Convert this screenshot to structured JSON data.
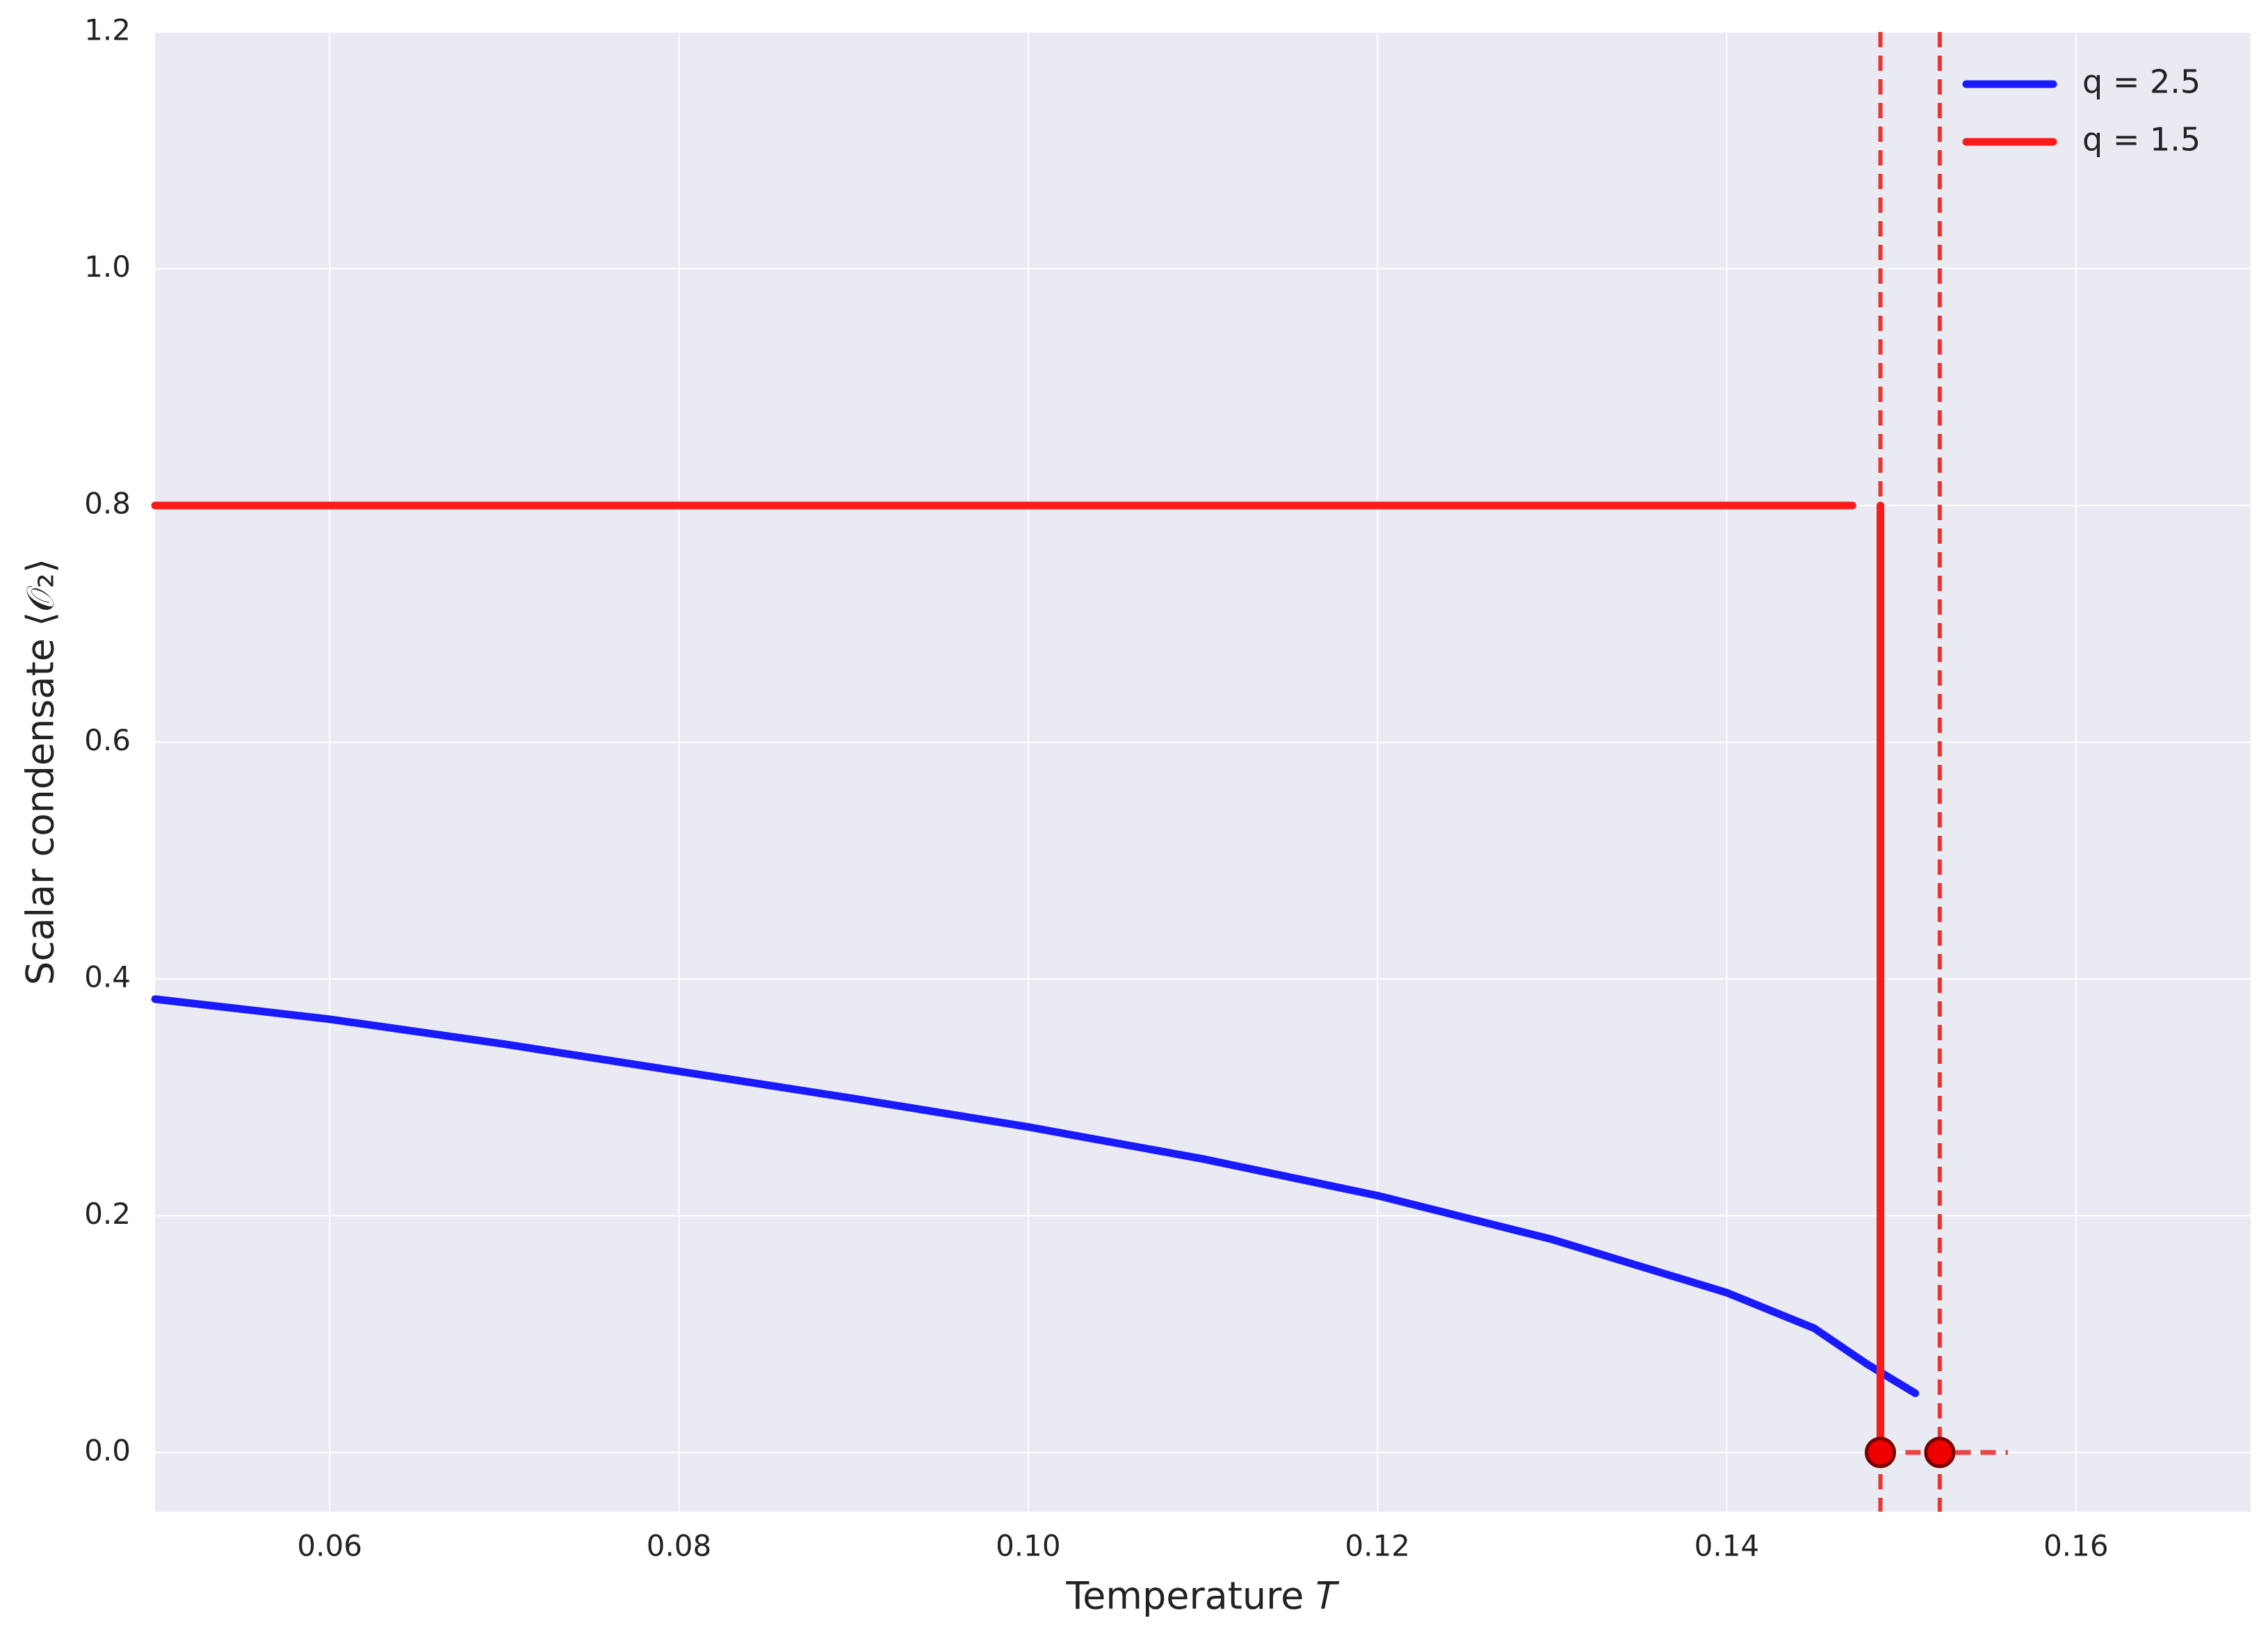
{
  "chart_data": {
    "type": "line",
    "xlabel": "Temperature 𝑇",
    "ylabel": "Scalar condensate ⟨𝒪₂⟩",
    "xlim": [
      0.05,
      0.17
    ],
    "ylim": [
      -0.05,
      1.2
    ],
    "xticks": [
      0.06,
      0.08,
      {
        "value": 0.1,
        "label": "0.10"
      },
      0.12,
      0.14,
      0.16
    ],
    "yticks": [
      {
        "value": 0,
        "label": "0.0"
      },
      0.2,
      0.4,
      0.6,
      0.8,
      {
        "value": 1,
        "label": "1.0"
      },
      1.2
    ],
    "grid": true,
    "legend": "upper right",
    "series": [
      {
        "name": "q = 2.5",
        "color": "#1a1aff",
        "x": [
          0.05,
          0.06,
          0.07,
          0.08,
          0.09,
          0.1,
          0.11,
          0.12,
          0.13,
          0.14,
          0.145,
          0.148,
          0.1508
        ],
        "values": [
          0.383,
          0.366,
          0.345,
          0.322,
          0.299,
          0.275,
          0.248,
          0.217,
          0.18,
          0.135,
          0.105,
          0.075,
          0.05
        ]
      },
      {
        "name": "q = 1.5",
        "color": "#ff1a1a",
        "x": [
          0.05,
          0.1472,
          null,
          0.1488,
          0.1488
        ],
        "values": [
          0.8,
          0.8,
          null,
          0.8,
          0
        ]
      }
    ],
    "critical_lines": {
      "color": "#ee3333",
      "x": [
        0.1488,
        0.1522
      ]
    },
    "transition_points": {
      "color": "#ee0000",
      "x": [
        0.1488,
        0.1522
      ],
      "values": [
        0,
        0
      ]
    },
    "normal_phase": {
      "color": "#ee4444",
      "x": [
        0.1488,
        0.1561
      ],
      "values": [
        0,
        0
      ]
    }
  }
}
